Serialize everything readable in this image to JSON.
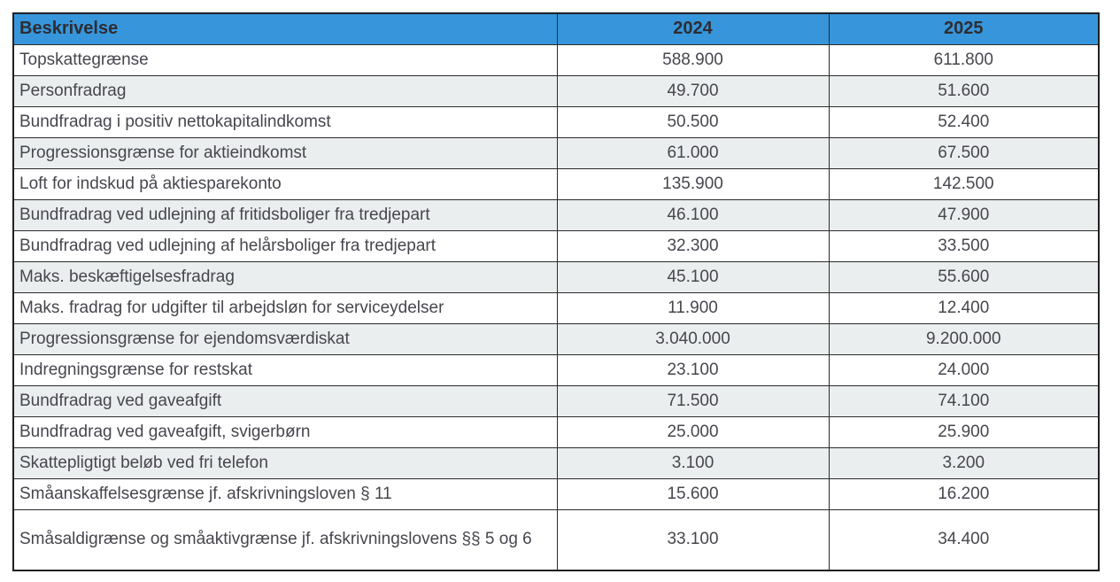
{
  "colors": {
    "header_bg": "#3796db",
    "header_text": "#2d2d33",
    "row_alt_bg": "#ebeeef",
    "row_bg": "#ffffff",
    "border": "#2b2b2b",
    "body_text": "#47464e"
  },
  "table": {
    "columns": [
      "Beskrivelse",
      "2024",
      "2025"
    ],
    "rows": [
      {
        "label": "Topskattegrænse",
        "v2024": "588.900",
        "v2025": "611.800"
      },
      {
        "label": "Personfradrag",
        "v2024": "49.700",
        "v2025": "51.600"
      },
      {
        "label": "Bundfradrag i positiv nettokapitalindkomst",
        "v2024": "50.500",
        "v2025": "52.400"
      },
      {
        "label": "Progressionsgrænse for aktieindkomst",
        "v2024": "61.000",
        "v2025": "67.500"
      },
      {
        "label": "Loft for indskud på aktiesparekonto",
        "v2024": "135.900",
        "v2025": "142.500"
      },
      {
        "label": "Bundfradrag ved udlejning af fritidsboliger fra tredjepart",
        "v2024": "46.100",
        "v2025": "47.900"
      },
      {
        "label": "Bundfradrag ved udlejning af helårsboliger fra tredjepart",
        "v2024": "32.300",
        "v2025": "33.500"
      },
      {
        "label": "Maks. beskæftigelsesfradrag",
        "v2024": "45.100",
        "v2025": "55.600"
      },
      {
        "label": "Maks. fradrag for udgifter til arbejdsløn for serviceydelser",
        "v2024": "11.900",
        "v2025": "12.400"
      },
      {
        "label": "Progressionsgrænse for ejendomsværdiskat",
        "v2024": "3.040.000",
        "v2025": "9.200.000"
      },
      {
        "label": "Indregningsgrænse for restskat",
        "v2024": "23.100",
        "v2025": "24.000"
      },
      {
        "label": "Bundfradrag ved gaveafgift",
        "v2024": "71.500",
        "v2025": "74.100"
      },
      {
        "label": "Bundfradrag ved gaveafgift, svigerbørn",
        "v2024": "25.000",
        "v2025": "25.900"
      },
      {
        "label": "Skattepligtigt beløb ved fri telefon",
        "v2024": "3.100",
        "v2025": "3.200"
      },
      {
        "label": "Småanskaffelsesgrænse jf. afskrivningsloven § 11",
        "v2024": "15.600",
        "v2025": "16.200"
      },
      {
        "label": "Småsaldigrænse og småaktivgrænse jf. afskrivningslovens §§ 5 og 6",
        "v2024": "33.100",
        "v2025": "34.400"
      }
    ]
  }
}
